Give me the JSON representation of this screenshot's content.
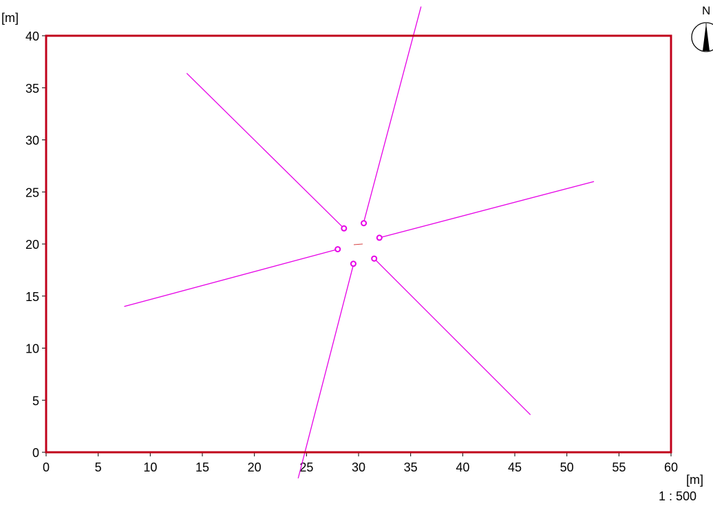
{
  "plot": {
    "y_unit": "[m]",
    "x_unit": "[m]",
    "scale": "1 : 500",
    "north_label": "N",
    "x_range": [
      0,
      60
    ],
    "y_range": [
      0,
      40
    ],
    "x_ticks": [
      "0",
      "5",
      "10",
      "15",
      "20",
      "25",
      "30",
      "35",
      "40",
      "45",
      "50",
      "55",
      "60"
    ],
    "y_ticks": [
      "0",
      "5",
      "10",
      "15",
      "20",
      "25",
      "30",
      "35",
      "40"
    ],
    "colors": {
      "frame": "#c0001a",
      "lines": "#e600e6",
      "markers": "#e600e6"
    }
  },
  "arms": [
    {
      "name": "arm-north",
      "start": [
        30.5,
        22.1
      ],
      "end": [
        36.0,
        42.8
      ]
    },
    {
      "name": "arm-northwest",
      "start": [
        28.6,
        21.5
      ],
      "end": [
        13.5,
        36.4
      ]
    },
    {
      "name": "arm-east",
      "start": [
        32.0,
        20.6
      ],
      "end": [
        52.6,
        26.0
      ]
    },
    {
      "name": "arm-west",
      "start": [
        28.0,
        19.5
      ],
      "end": [
        7.5,
        14.0
      ]
    },
    {
      "name": "arm-south",
      "start": [
        29.5,
        18.0
      ],
      "end": [
        24.2,
        -2.5
      ]
    },
    {
      "name": "arm-southeast",
      "start": [
        31.5,
        18.6
      ],
      "end": [
        46.5,
        3.6
      ]
    }
  ],
  "markers": [
    {
      "name": "marker-north",
      "pos": [
        30.5,
        22.0
      ]
    },
    {
      "name": "marker-northwest",
      "pos": [
        28.6,
        21.5
      ]
    },
    {
      "name": "marker-east",
      "pos": [
        32.0,
        20.6
      ]
    },
    {
      "name": "marker-west",
      "pos": [
        28.0,
        19.5
      ]
    },
    {
      "name": "marker-south",
      "pos": [
        29.5,
        18.1
      ]
    },
    {
      "name": "marker-southeast",
      "pos": [
        31.5,
        18.6
      ]
    }
  ]
}
